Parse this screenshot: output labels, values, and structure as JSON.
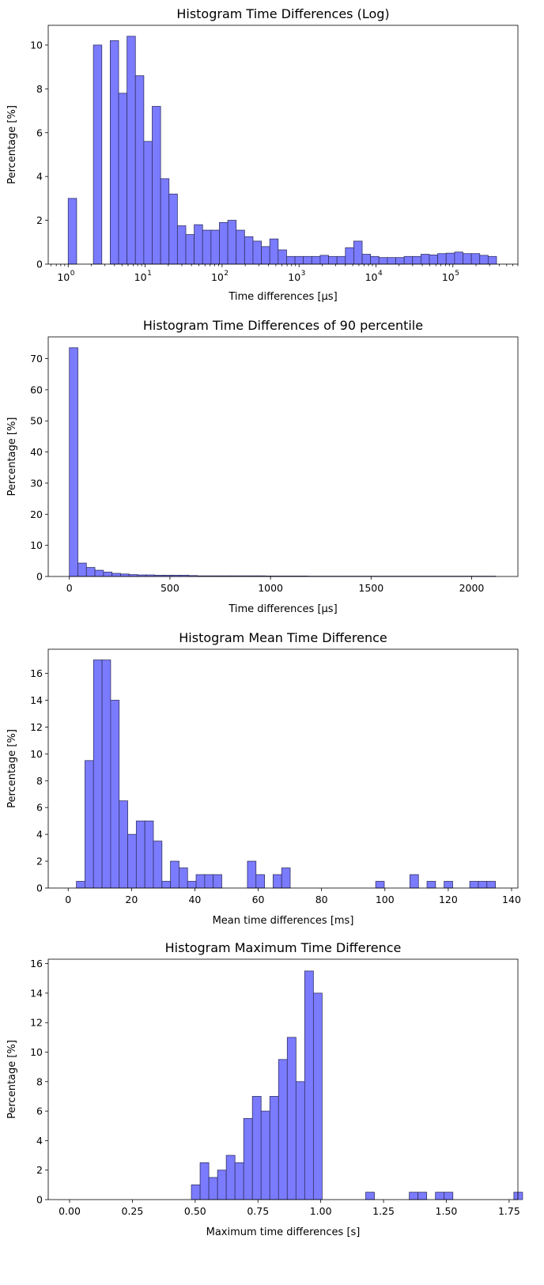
{
  "chart_data": [
    {
      "type": "bar",
      "title": "Histogram Time Differences (Log)",
      "xlabel": "Time differences [μs]",
      "ylabel": "Percentage [%]",
      "xscale": "log",
      "xlim": [
        0.55,
        700000
      ],
      "ylim": [
        0,
        10.9
      ],
      "x_ticks": [
        {
          "base": "10",
          "exp": "0",
          "value": 1
        },
        {
          "base": "10",
          "exp": "1",
          "value": 10
        },
        {
          "base": "10",
          "exp": "2",
          "value": 100
        },
        {
          "base": "10",
          "exp": "3",
          "value": 1000
        },
        {
          "base": "10",
          "exp": "4",
          "value": 10000
        },
        {
          "base": "10",
          "exp": "5",
          "value": 100000
        }
      ],
      "y_ticks": [
        0,
        2,
        4,
        6,
        8,
        10
      ],
      "bin_edges": [
        1,
        1.286,
        1.653,
        2.126,
        2.733,
        3.515,
        4.519,
        5.81,
        7.471,
        9.606,
        12.35,
        15.88,
        20.42,
        26.26,
        33.76,
        43.41,
        55.81,
        71.76,
        92.27,
        118.6,
        152.5,
        196.1,
        252.2,
        324.2,
        416.9,
        536.0,
        689.2,
        886.1,
        1139.3,
        1464.9,
        1883.5,
        2421.8,
        3113.9,
        4003.7,
        5147.8,
        6618.9,
        8510.4,
        10942,
        14069,
        18090,
        23259,
        29906,
        38452,
        49441,
        63569,
        81735,
        105093,
        135125,
        173738,
        223388,
        287226,
        369307,
        474842
      ],
      "values": [
        3.0,
        0,
        0,
        10.0,
        0,
        10.2,
        7.8,
        10.4,
        8.6,
        5.6,
        7.2,
        3.9,
        3.2,
        1.75,
        1.35,
        1.8,
        1.55,
        1.55,
        1.9,
        2.0,
        1.55,
        1.25,
        1.05,
        0.8,
        1.15,
        0.65,
        0.35,
        0.35,
        0.35,
        0.35,
        0.4,
        0.35,
        0.35,
        0.75,
        1.05,
        0.45,
        0.35,
        0.3,
        0.3,
        0.3,
        0.35,
        0.35,
        0.45,
        0.42,
        0.48,
        0.5,
        0.55,
        0.48,
        0.48,
        0.4,
        0.35,
        0.0
      ]
    },
    {
      "type": "bar",
      "title": "Histogram Time Differences of 90 percentile",
      "xlabel": "Time differences [μs]",
      "ylabel": "Percentage [%]",
      "xlim": [
        -105,
        2230
      ],
      "ylim": [
        0,
        77
      ],
      "x_ticks": [
        0,
        500,
        1000,
        1500,
        2000
      ],
      "y_ticks": [
        0,
        10,
        20,
        30,
        40,
        50,
        60,
        70
      ],
      "bin_start": 0,
      "bin_width": 42.4,
      "values": [
        73.5,
        4.3,
        2.9,
        2.0,
        1.4,
        1.0,
        0.8,
        0.6,
        0.5,
        0.5,
        0.4,
        0.4,
        0.4,
        0.4,
        0.3,
        0.2,
        0.2,
        0.2,
        0.2,
        0.2,
        0.2,
        0.2,
        0.2,
        0.15,
        0.15,
        0.15,
        0.15,
        0.15,
        0.1,
        0.1,
        0.1,
        0.1,
        0.1,
        0.1,
        0.1,
        0.1,
        0.1,
        0.1,
        0.1,
        0.1,
        0.1,
        0.1,
        0.1,
        0.1,
        0.1,
        0.1,
        0.1,
        0.1,
        0.1,
        0.1
      ]
    },
    {
      "type": "bar",
      "title": "Histogram Mean Time Difference",
      "xlabel": "Mean time differences [ms]",
      "ylabel": "Percentage [%]",
      "xlim": [
        -6.3,
        142
      ],
      "ylim": [
        0,
        17.8
      ],
      "x_ticks": [
        0,
        20,
        40,
        60,
        80,
        100,
        120,
        140
      ],
      "y_ticks": [
        0,
        2,
        4,
        6,
        8,
        10,
        12,
        14,
        16
      ],
      "bin_start": 2.6,
      "bin_width": 2.7,
      "values": [
        0.5,
        9.5,
        17.0,
        17.0,
        14.0,
        6.5,
        4.0,
        5.0,
        5.0,
        3.5,
        0.5,
        2.0,
        1.5,
        0.5,
        1.0,
        1.0,
        1.0,
        0,
        0,
        0,
        2.0,
        1.0,
        0,
        1.0,
        1.5,
        0,
        0,
        0,
        0,
        0,
        0,
        0,
        0,
        0,
        0,
        0.5,
        0,
        0,
        0,
        1.0,
        0,
        0.5,
        0,
        0.5,
        0,
        0,
        0.5,
        0.5,
        0.5
      ]
    },
    {
      "type": "bar",
      "title": "Histogram Maximum Time Difference",
      "xlabel": "Maximum time differences [s]",
      "ylabel": "Percentage [%]",
      "xlim": [
        -0.085,
        1.785
      ],
      "ylim": [
        0,
        16.3
      ],
      "x_ticks": [
        "0.00",
        "0.25",
        "0.50",
        "0.75",
        "1.00",
        "1.25",
        "1.50",
        "1.75"
      ],
      "y_ticks": [
        0,
        2,
        4,
        6,
        8,
        10,
        12,
        14,
        16
      ],
      "bin_start": 0.485,
      "bin_width": 0.0347,
      "values": [
        1.0,
        2.5,
        1.5,
        2.0,
        3.0,
        2.5,
        5.5,
        7.0,
        6.0,
        7.0,
        9.5,
        11.0,
        8.0,
        15.5,
        14.0,
        0,
        0,
        0,
        0,
        0,
        0.5,
        0,
        0,
        0,
        0,
        0.5,
        0.5,
        0,
        0.5,
        0.5,
        0,
        0,
        0,
        0,
        0,
        0,
        0,
        0.5
      ]
    }
  ]
}
